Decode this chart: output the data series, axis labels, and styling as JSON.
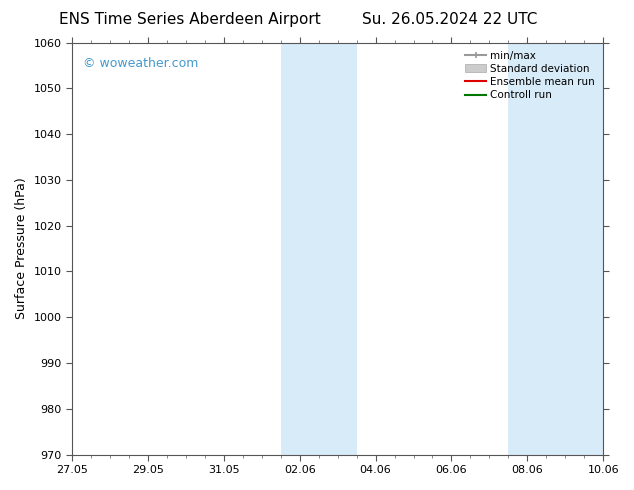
{
  "title": "ENS Time Series Aberdeen Airport",
  "title2": "Su. 26.05.2024 22 UTC",
  "ylabel": "Surface Pressure (hPa)",
  "ylim": [
    970,
    1060
  ],
  "yticks": [
    970,
    980,
    990,
    1000,
    1010,
    1020,
    1030,
    1040,
    1050,
    1060
  ],
  "xtick_labels": [
    "27.05",
    "29.05",
    "31.05",
    "02.06",
    "04.06",
    "06.06",
    "08.06",
    "10.06"
  ],
  "xtick_positions": [
    0,
    2,
    4,
    6,
    8,
    10,
    12,
    14
  ],
  "xlim": [
    0,
    14
  ],
  "bg_color": "#ffffff",
  "plot_bg_color": "#ffffff",
  "shade_regions": [
    {
      "x_start": 5.5,
      "x_end": 6.5,
      "color": "#d8ebf8"
    },
    {
      "x_start": 6.5,
      "x_end": 7.5,
      "color": "#d8ebf8"
    },
    {
      "x_start": 11.5,
      "x_end": 12.5,
      "color": "#d8ebf8"
    },
    {
      "x_start": 12.5,
      "x_end": 14.0,
      "color": "#d8ebf8"
    }
  ],
  "watermark": "© woweather.com",
  "watermark_color": "#4499cc",
  "legend_items": [
    {
      "label": "min/max",
      "color": "#999999",
      "lw": 1.5,
      "style": "line_with_ticks"
    },
    {
      "label": "Standard deviation",
      "color": "#cccccc",
      "lw": 8,
      "style": "bar"
    },
    {
      "label": "Ensemble mean run",
      "color": "#dd0000",
      "lw": 1.5,
      "style": "line"
    },
    {
      "label": "Controll run",
      "color": "#007700",
      "lw": 1.5,
      "style": "line"
    }
  ],
  "title_fontsize": 11,
  "tick_label_fontsize": 8,
  "ylabel_fontsize": 9,
  "axis_color": "#555555",
  "minor_xtick_count": 4
}
